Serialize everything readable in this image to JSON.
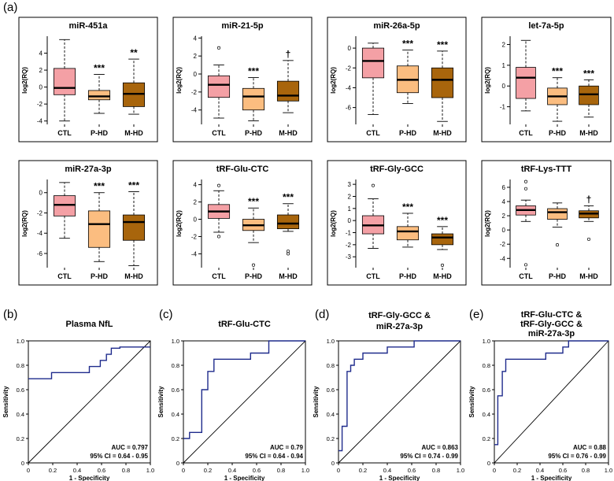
{
  "figure": {
    "panel_labels": [
      "(a)",
      "(b)",
      "(c)",
      "(d)",
      "(e)"
    ],
    "colors": {
      "ctl": "#f4a0a5",
      "phd": "#fbbd80",
      "mhd": "#a8650c",
      "roc_line": "#1f2b8c",
      "axis": "#000000"
    }
  },
  "chart_data": [
    {
      "type": "boxplot",
      "title": "miR-451a",
      "ylabel": "log2(RQ)",
      "categories": [
        "CTL",
        "P-HD",
        "M-HD"
      ],
      "ylim": [
        -4.4,
        6
      ],
      "yticks": [
        -4,
        -2,
        0,
        2,
        4
      ],
      "boxes": [
        {
          "whisker_low": -4.0,
          "q1": -0.9,
          "median": -0.1,
          "q3": 2.2,
          "whisker_high": 5.6,
          "outliers": []
        },
        {
          "whisker_low": -3.1,
          "q1": -1.5,
          "median": -1.1,
          "q3": -0.4,
          "whisker_high": 1.5,
          "outliers": []
        },
        {
          "whisker_low": -3.2,
          "q1": -2.3,
          "median": -0.8,
          "q3": 0.5,
          "whisker_high": 3.3,
          "outliers": []
        }
      ],
      "annotations": [
        "",
        "***",
        "**"
      ]
    },
    {
      "type": "boxplot",
      "title": "miR-21-5p",
      "ylabel": "log2(RQ)",
      "categories": [
        "CTL",
        "P-HD",
        "M-HD"
      ],
      "ylim": [
        -5.6,
        4.2
      ],
      "yticks": [
        -4,
        -2,
        0,
        2,
        4
      ],
      "boxes": [
        {
          "whisker_low": -4.9,
          "q1": -2.6,
          "median": -1.2,
          "q3": -0.2,
          "whisker_high": 1.0,
          "outliers": [
            2.9
          ]
        },
        {
          "whisker_low": -5.2,
          "q1": -4.0,
          "median": -2.5,
          "q3": -1.6,
          "whisker_high": -0.4,
          "outliers": []
        },
        {
          "whisker_low": -4.3,
          "q1": -3.0,
          "median": -2.4,
          "q3": -0.8,
          "whisker_high": 1.5,
          "outliers": []
        }
      ],
      "annotations": [
        "",
        "***",
        "†"
      ]
    },
    {
      "type": "boxplot",
      "title": "miR-26a-5p",
      "ylabel": "log2(RQ)",
      "categories": [
        "CTL",
        "P-HD",
        "M-HD"
      ],
      "ylim": [
        -7.7,
        1.2
      ],
      "yticks": [
        -6,
        -4,
        -2,
        0
      ],
      "boxes": [
        {
          "whisker_low": -6.7,
          "q1": -3.0,
          "median": -1.3,
          "q3": 0.0,
          "whisker_high": 0.5,
          "outliers": []
        },
        {
          "whisker_low": -5.6,
          "q1": -4.5,
          "median": -3.2,
          "q3": -1.8,
          "whisker_high": -0.2,
          "outliers": []
        },
        {
          "whisker_low": -7.4,
          "q1": -5.0,
          "median": -3.2,
          "q3": -2.0,
          "whisker_high": -0.3,
          "outliers": []
        }
      ],
      "annotations": [
        "",
        "***",
        "***"
      ]
    },
    {
      "type": "boxplot",
      "title": "let-7a-5p",
      "ylabel": "log2(RQ)",
      "categories": [
        "CTL",
        "P-HD",
        "M-HD"
      ],
      "ylim": [
        -1.85,
        2.4
      ],
      "yticks": [
        -1,
        0,
        1,
        2
      ],
      "boxes": [
        {
          "whisker_low": -1.2,
          "q1": -0.6,
          "median": 0.4,
          "q3": 0.9,
          "whisker_high": 2.2,
          "outliers": []
        },
        {
          "whisker_low": -1.7,
          "q1": -0.9,
          "median": -0.5,
          "q3": -0.1,
          "whisker_high": 0.4,
          "outliers": []
        },
        {
          "whisker_low": -1.5,
          "q1": -0.9,
          "median": -0.4,
          "q3": 0.0,
          "whisker_high": 0.3,
          "outliers": []
        }
      ],
      "annotations": [
        "",
        "***",
        "***"
      ]
    },
    {
      "type": "boxplot",
      "title": "miR-27a-3p",
      "ylabel": "log2(RQ)",
      "categories": [
        "CTL",
        "P-HD",
        "M-HD"
      ],
      "ylim": [
        -7.4,
        1.3
      ],
      "yticks": [
        -6,
        -4,
        -2,
        0
      ],
      "boxes": [
        {
          "whisker_low": -4.5,
          "q1": -2.3,
          "median": -1.2,
          "q3": -0.3,
          "whisker_high": 1.0,
          "outliers": []
        },
        {
          "whisker_low": -6.8,
          "q1": -5.4,
          "median": -3.1,
          "q3": -1.8,
          "whisker_high": 0.0,
          "outliers": []
        },
        {
          "whisker_low": -7.2,
          "q1": -4.7,
          "median": -2.9,
          "q3": -2.2,
          "whisker_high": 0.1,
          "outliers": []
        }
      ],
      "annotations": [
        "",
        "***",
        "***"
      ]
    },
    {
      "type": "boxplot",
      "title": "tRF-Glu-CTC",
      "ylabel": "log2(RQ)",
      "categories": [
        "CTL",
        "P-HD",
        "M-HD"
      ],
      "ylim": [
        -5.6,
        4.6
      ],
      "yticks": [
        -4,
        -2,
        0,
        2,
        4
      ],
      "boxes": [
        {
          "whisker_low": -1.5,
          "q1": 0.1,
          "median": 0.9,
          "q3": 1.7,
          "whisker_high": 3.3,
          "outliers": [
            3.9,
            -2.0
          ]
        },
        {
          "whisker_low": -2.7,
          "q1": -1.3,
          "median": -0.7,
          "q3": 0.0,
          "whisker_high": 1.3,
          "outliers": [
            -5.3
          ]
        },
        {
          "whisker_low": -1.4,
          "q1": -1.1,
          "median": -0.5,
          "q3": 0.5,
          "whisker_high": 1.8,
          "outliers": [
            -3.7,
            -4.0
          ]
        }
      ],
      "annotations": [
        "",
        "***",
        "***"
      ]
    },
    {
      "type": "boxplot",
      "title": "tRF-Gly-GCC",
      "ylabel": "log2(RQ)",
      "categories": [
        "CTL",
        "P-HD",
        "M-HD"
      ],
      "ylim": [
        -3.9,
        3.4
      ],
      "yticks": [
        -3,
        -2,
        -1,
        0,
        1,
        2,
        3
      ],
      "boxes": [
        {
          "whisker_low": -2.3,
          "q1": -1.1,
          "median": -0.4,
          "q3": 0.4,
          "whisker_high": 1.8,
          "outliers": [
            2.9
          ]
        },
        {
          "whisker_low": -2.2,
          "q1": -1.6,
          "median": -0.9,
          "q3": -0.5,
          "whisker_high": 0.6,
          "outliers": []
        },
        {
          "whisker_low": -2.4,
          "q1": -2.0,
          "median": -1.4,
          "q3": -1.1,
          "whisker_high": -0.5,
          "outliers": [
            -3.7
          ]
        }
      ],
      "annotations": [
        "",
        "***",
        "***"
      ]
    },
    {
      "type": "boxplot",
      "title": "tRF-Lys-TTT",
      "ylabel": "log2(RQ)",
      "categories": [
        "CTL",
        "P-HD",
        "M-HD"
      ],
      "ylim": [
        -5.3,
        7.1
      ],
      "yticks": [
        -4,
        -2,
        0,
        2,
        4,
        6
      ],
      "boxes": [
        {
          "whisker_low": 1.2,
          "q1": 2.1,
          "median": 2.8,
          "q3": 3.4,
          "whisker_high": 4.2,
          "outliers": [
            6.8,
            5.8,
            -4.9
          ]
        },
        {
          "whisker_low": 0.4,
          "q1": 1.5,
          "median": 2.5,
          "q3": 3.0,
          "whisker_high": 3.8,
          "outliers": [
            -2.1
          ]
        },
        {
          "whisker_low": 1.2,
          "q1": 1.7,
          "median": 2.3,
          "q3": 2.7,
          "whisker_high": 3.4,
          "outliers": [
            -1.3
          ]
        }
      ],
      "annotations": [
        "",
        "",
        "†"
      ]
    },
    {
      "type": "roc",
      "title": "Plasma NfL",
      "xlabel": "1 - Specificity",
      "ylabel": "Sensitivity",
      "auc_text": "AUC = 0.797",
      "ci_text": "95% CI = 0.64 - 0.95",
      "ticks": [
        "0",
        "0.2",
        "0.4",
        "0.6",
        "0.8",
        "1.0"
      ],
      "points": [
        [
          0,
          0.69
        ],
        [
          0.19,
          0.69
        ],
        [
          0.19,
          0.74
        ],
        [
          0.5,
          0.74
        ],
        [
          0.5,
          0.79
        ],
        [
          0.59,
          0.79
        ],
        [
          0.59,
          0.84
        ],
        [
          0.64,
          0.84
        ],
        [
          0.64,
          0.89
        ],
        [
          0.68,
          0.89
        ],
        [
          0.68,
          0.94
        ],
        [
          0.75,
          0.94
        ],
        [
          0.75,
          0.95
        ],
        [
          1,
          0.95
        ]
      ]
    },
    {
      "type": "roc",
      "title": "tRF-Glu-CTC",
      "xlabel": "1 - Specificity",
      "ylabel": "Sensitivity",
      "auc_text": "AUC = 0.79",
      "ci_text": "95% CI = 0.64 - 0.94",
      "ticks": [
        "0",
        "0.2",
        "0.4",
        "0.6",
        "0.8",
        "1.0"
      ],
      "points": [
        [
          0,
          0.2
        ],
        [
          0.05,
          0.2
        ],
        [
          0.05,
          0.25
        ],
        [
          0.15,
          0.25
        ],
        [
          0.15,
          0.6
        ],
        [
          0.2,
          0.6
        ],
        [
          0.2,
          0.75
        ],
        [
          0.25,
          0.75
        ],
        [
          0.25,
          0.85
        ],
        [
          0.55,
          0.85
        ],
        [
          0.55,
          0.9
        ],
        [
          0.7,
          0.9
        ],
        [
          0.7,
          1
        ],
        [
          1,
          1
        ]
      ]
    },
    {
      "type": "roc",
      "title": "tRF-Gly-GCC &",
      "title2": "miR-27a-3p",
      "xlabel": "1 - Specificity",
      "ylabel": "Sensitivity",
      "auc_text": "AUC = 0.863",
      "ci_text": "95% CI = 0.74 - 0.99",
      "ticks": [
        "0",
        "0.2",
        "0.4",
        "0.6",
        "0.8",
        "1.0"
      ],
      "points": [
        [
          0,
          0.1
        ],
        [
          0.03,
          0.1
        ],
        [
          0.03,
          0.3
        ],
        [
          0.07,
          0.3
        ],
        [
          0.07,
          0.75
        ],
        [
          0.1,
          0.75
        ],
        [
          0.1,
          0.8
        ],
        [
          0.13,
          0.8
        ],
        [
          0.13,
          0.85
        ],
        [
          0.2,
          0.85
        ],
        [
          0.2,
          0.9
        ],
        [
          0.4,
          0.9
        ],
        [
          0.4,
          0.95
        ],
        [
          0.62,
          0.95
        ],
        [
          0.62,
          1
        ],
        [
          1,
          1
        ]
      ]
    },
    {
      "type": "roc",
      "title": "tRF-Glu-CTC &",
      "title2": "tRF-Gly-GCC &",
      "title3": "miR-27a-3p",
      "xlabel": "1 - Specificity",
      "ylabel": "Sensitivity",
      "auc_text": "AUC = 0.88",
      "ci_text": "95% CI = 0.76 - 0.99",
      "ticks": [
        "0",
        "0.2",
        "0.4",
        "0.6",
        "0.8",
        "1.0"
      ],
      "points": [
        [
          0,
          0.15
        ],
        [
          0.03,
          0.15
        ],
        [
          0.03,
          0.55
        ],
        [
          0.07,
          0.55
        ],
        [
          0.07,
          0.75
        ],
        [
          0.1,
          0.75
        ],
        [
          0.1,
          0.85
        ],
        [
          0.45,
          0.85
        ],
        [
          0.45,
          0.9
        ],
        [
          0.6,
          0.9
        ],
        [
          0.6,
          0.95
        ],
        [
          0.65,
          0.95
        ],
        [
          0.65,
          1
        ],
        [
          1,
          1
        ]
      ]
    }
  ]
}
